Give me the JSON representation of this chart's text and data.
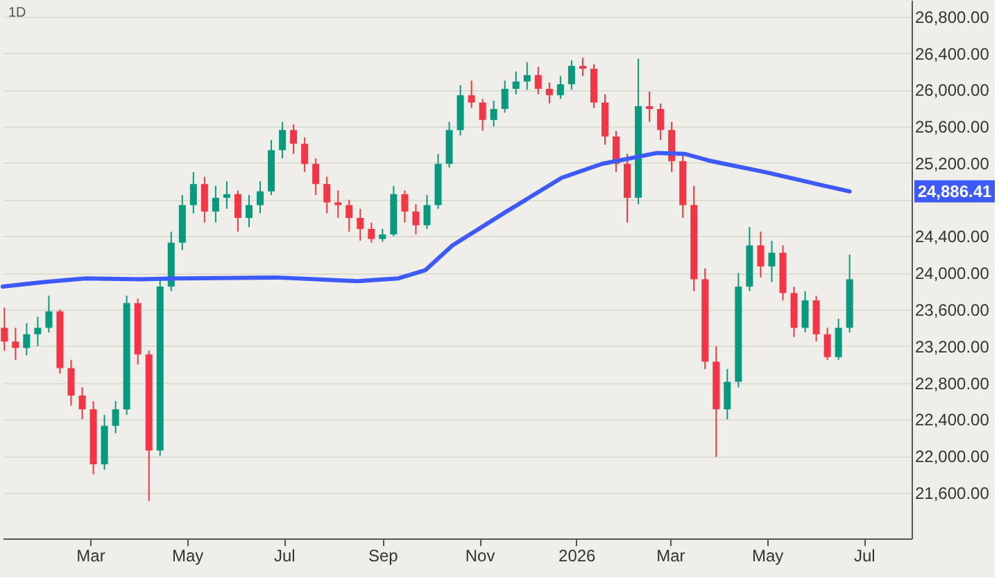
{
  "chart_data": {
    "type": "candlestick",
    "title": "1D",
    "x": [
      "2025-01-06",
      "2025-01-13",
      "2025-01-20",
      "2025-01-27",
      "2025-02-03",
      "2025-02-10",
      "2025-02-17",
      "2025-02-24",
      "2025-03-03",
      "2025-03-10",
      "2025-03-17",
      "2025-03-24",
      "2025-03-31",
      "2025-04-07",
      "2025-04-14",
      "2025-04-21",
      "2025-04-28",
      "2025-05-05",
      "2025-05-12",
      "2025-05-19",
      "2025-05-26",
      "2025-06-02",
      "2025-06-09",
      "2025-06-16",
      "2025-06-23",
      "2025-06-30",
      "2025-07-07",
      "2025-07-14",
      "2025-07-21",
      "2025-07-28",
      "2025-08-04",
      "2025-08-11",
      "2025-08-18",
      "2025-08-25",
      "2025-09-01",
      "2025-09-08",
      "2025-09-15",
      "2025-09-22",
      "2025-09-29",
      "2025-10-06",
      "2025-10-13",
      "2025-10-20",
      "2025-10-27",
      "2025-11-03",
      "2025-11-10",
      "2025-11-17",
      "2025-11-24",
      "2025-12-01",
      "2025-12-08",
      "2025-12-15",
      "2025-12-22",
      "2025-12-29",
      "2026-01-05",
      "2026-01-12",
      "2026-01-19",
      "2026-01-26",
      "2026-02-02",
      "2026-02-09",
      "2026-02-16",
      "2026-02-23",
      "2026-03-02",
      "2026-03-09",
      "2026-03-16",
      "2026-03-23",
      "2026-03-30",
      "2026-04-06",
      "2026-04-13",
      "2026-04-20",
      "2026-04-27",
      "2026-05-04",
      "2026-05-11",
      "2026-05-18",
      "2026-05-25",
      "2026-06-01",
      "2026-06-08",
      "2026-06-15",
      "2026-06-22"
    ],
    "ohlc": [
      [
        23400,
        23620,
        23150,
        23250
      ],
      [
        23250,
        23400,
        23050,
        23180
      ],
      [
        23180,
        23450,
        23100,
        23330
      ],
      [
        23330,
        23520,
        23200,
        23400
      ],
      [
        23400,
        23750,
        23350,
        23580
      ],
      [
        23580,
        23600,
        22900,
        22960
      ],
      [
        22960,
        23050,
        22550,
        22660
      ],
      [
        22660,
        22750,
        22400,
        22510
      ],
      [
        22510,
        22600,
        21800,
        21910
      ],
      [
        21910,
        22450,
        21850,
        22330
      ],
      [
        22330,
        22600,
        22250,
        22510
      ],
      [
        22510,
        23750,
        22450,
        23670
      ],
      [
        23670,
        23720,
        23000,
        23110
      ],
      [
        23110,
        23150,
        21510,
        22060
      ],
      [
        22060,
        23950,
        22000,
        23850
      ],
      [
        23850,
        24450,
        23800,
        24330
      ],
      [
        24330,
        24850,
        24250,
        24740
      ],
      [
        24740,
        25100,
        24650,
        24970
      ],
      [
        24970,
        25050,
        24550,
        24670
      ],
      [
        24670,
        24950,
        24550,
        24820
      ],
      [
        24820,
        25000,
        24700,
        24860
      ],
      [
        24860,
        24900,
        24450,
        24600
      ],
      [
        24600,
        24850,
        24500,
        24740
      ],
      [
        24740,
        25000,
        24650,
        24890
      ],
      [
        24890,
        25450,
        24850,
        25340
      ],
      [
        25340,
        25650,
        25250,
        25560
      ],
      [
        25560,
        25620,
        25300,
        25410
      ],
      [
        25410,
        25480,
        25100,
        25190
      ],
      [
        25190,
        25250,
        24850,
        24970
      ],
      [
        24970,
        25050,
        24650,
        24770
      ],
      [
        24770,
        24900,
        24600,
        24740
      ],
      [
        24740,
        24800,
        24450,
        24600
      ],
      [
        24600,
        24700,
        24350,
        24480
      ],
      [
        24480,
        24550,
        24330,
        24370
      ],
      [
        24370,
        24480,
        24340,
        24420
      ],
      [
        24420,
        24950,
        24400,
        24860
      ],
      [
        24860,
        24900,
        24550,
        24670
      ],
      [
        24670,
        24750,
        24420,
        24520
      ],
      [
        24520,
        24850,
        24480,
        24740
      ],
      [
        24740,
        25300,
        24700,
        25190
      ],
      [
        25190,
        25650,
        25150,
        25560
      ],
      [
        25560,
        26050,
        25500,
        25940
      ],
      [
        25940,
        26100,
        25800,
        25860
      ],
      [
        25860,
        25900,
        25550,
        25670
      ],
      [
        25670,
        25880,
        25600,
        25790
      ],
      [
        25790,
        26100,
        25750,
        26010
      ],
      [
        26010,
        26200,
        25950,
        26090
      ],
      [
        26090,
        26300,
        26000,
        26160
      ],
      [
        26160,
        26250,
        25950,
        26010
      ],
      [
        26010,
        26080,
        25850,
        25940
      ],
      [
        25940,
        26150,
        25900,
        26060
      ],
      [
        26060,
        26320,
        26000,
        26260
      ],
      [
        26260,
        26350,
        26150,
        26230
      ],
      [
        26230,
        26280,
        25800,
        25860
      ],
      [
        25860,
        25950,
        25400,
        25490
      ],
      [
        25490,
        25550,
        25100,
        25190
      ],
      [
        25190,
        25300,
        24550,
        24820
      ],
      [
        24820,
        26340,
        24750,
        25820
      ],
      [
        25820,
        25980,
        25650,
        25790
      ],
      [
        25790,
        25850,
        25450,
        25560
      ],
      [
        25560,
        25650,
        25100,
        25220
      ],
      [
        25220,
        25300,
        24600,
        24740
      ],
      [
        24740,
        24950,
        23800,
        23930
      ],
      [
        23930,
        24050,
        22950,
        23030
      ],
      [
        23030,
        23200,
        21990,
        22510
      ],
      [
        22510,
        22950,
        22400,
        22810
      ],
      [
        22810,
        24000,
        22750,
        23850
      ],
      [
        23850,
        24500,
        23800,
        24300
      ],
      [
        24300,
        24450,
        23950,
        24070
      ],
      [
        24070,
        24350,
        23900,
        24220
      ],
      [
        24220,
        24300,
        23700,
        23780
      ],
      [
        23780,
        23850,
        23300,
        23400
      ],
      [
        23400,
        23800,
        23350,
        23700
      ],
      [
        23700,
        23750,
        23250,
        23330
      ],
      [
        23330,
        23400,
        23050,
        23080
      ],
      [
        23080,
        23500,
        23050,
        23400
      ],
      [
        23400,
        24200,
        23350,
        23930
      ]
    ],
    "colors": [
      "#f23645",
      "#f23645",
      "#089981",
      "#089981",
      "#089981",
      "#f23645",
      "#f23645",
      "#f23645",
      "#f23645",
      "#089981",
      "#089981",
      "#089981",
      "#f23645",
      "#f23645",
      "#089981",
      "#089981",
      "#089981",
      "#089981",
      "#f23645",
      "#089981",
      "#089981",
      "#f23645",
      "#089981",
      "#089981",
      "#089981",
      "#089981",
      "#f23645",
      "#f23645",
      "#f23645",
      "#f23645",
      "#f23645",
      "#f23645",
      "#f23645",
      "#f23645",
      "#089981",
      "#089981",
      "#f23645",
      "#f23645",
      "#089981",
      "#089981",
      "#089981",
      "#089981",
      "#f23645",
      "#f23645",
      "#089981",
      "#089981",
      "#089981",
      "#089981",
      "#f23645",
      "#f23645",
      "#089981",
      "#089981",
      "#f23645",
      "#f23645",
      "#f23645",
      "#f23645",
      "#f23645",
      "#089981",
      "#f23645",
      "#f23645",
      "#f23645",
      "#f23645",
      "#f23645",
      "#f23645",
      "#f23645",
      "#089981",
      "#089981",
      "#089981",
      "#f23645",
      "#089981",
      "#f23645",
      "#f23645",
      "#089981",
      "#f23645",
      "#f23645",
      "#089981",
      "#089981"
    ],
    "series": [
      {
        "type": "line",
        "color": "#3d5afe",
        "x": [
          "2025-01-05",
          "2025-01-31",
          "2025-02-26",
          "2025-04-01",
          "2025-04-27",
          "2025-06-26",
          "2025-08-16",
          "2025-09-11",
          "2025-09-28",
          "2025-10-15",
          "2025-11-18",
          "2025-12-23",
          "2026-01-17",
          "2026-02-21",
          "2026-03-10",
          "2026-03-27",
          "2026-04-30",
          "2026-06-04",
          "2026-06-22"
        ],
        "values": [
          23850,
          23900,
          23940,
          23930,
          23940,
          23950,
          23910,
          23940,
          24030,
          24300,
          24670,
          25040,
          25190,
          25310,
          25300,
          25220,
          25100,
          24960,
          24890
        ]
      }
    ],
    "xlim": [
      "2025-01-05",
      "2026-07-31"
    ],
    "xticks": [
      {
        "value": "2025-03-01",
        "label": "Mar"
      },
      {
        "value": "2025-05-01",
        "label": "May"
      },
      {
        "value": "2025-07-01",
        "label": "Jul"
      },
      {
        "value": "2025-09-01",
        "label": "Sep"
      },
      {
        "value": "2025-11-01",
        "label": "Nov"
      },
      {
        "value": "2026-01-01",
        "label": "2026"
      },
      {
        "value": "2026-03-01",
        "label": "Mar"
      },
      {
        "value": "2026-05-01",
        "label": "May"
      },
      {
        "value": "2026-07-01",
        "label": "Jul"
      }
    ],
    "ylim": [
      21100,
      26980
    ],
    "yticks": [
      {
        "value": 21600,
        "label": "21,600.00"
      },
      {
        "value": 22000,
        "label": "22,000.00"
      },
      {
        "value": 22400,
        "label": "22,400.00"
      },
      {
        "value": 22800,
        "label": "22,800.00"
      },
      {
        "value": 23200,
        "label": "23,200.00"
      },
      {
        "value": 23600,
        "label": "23,600.00"
      },
      {
        "value": 24000,
        "label": "24,000.00"
      },
      {
        "value": 24400,
        "label": "24,400.00"
      },
      {
        "value": 24800,
        "label": null
      },
      {
        "value": 25200,
        "label": "25,200.00"
      },
      {
        "value": 25600,
        "label": "25,600.00"
      },
      {
        "value": 26000,
        "label": "26,000.00"
      },
      {
        "value": 26400,
        "label": "26,400.00"
      },
      {
        "value": 26800,
        "label": "26,800.00"
      }
    ],
    "grid": "y",
    "annotations": [
      "24,886.41"
    ]
  }
}
